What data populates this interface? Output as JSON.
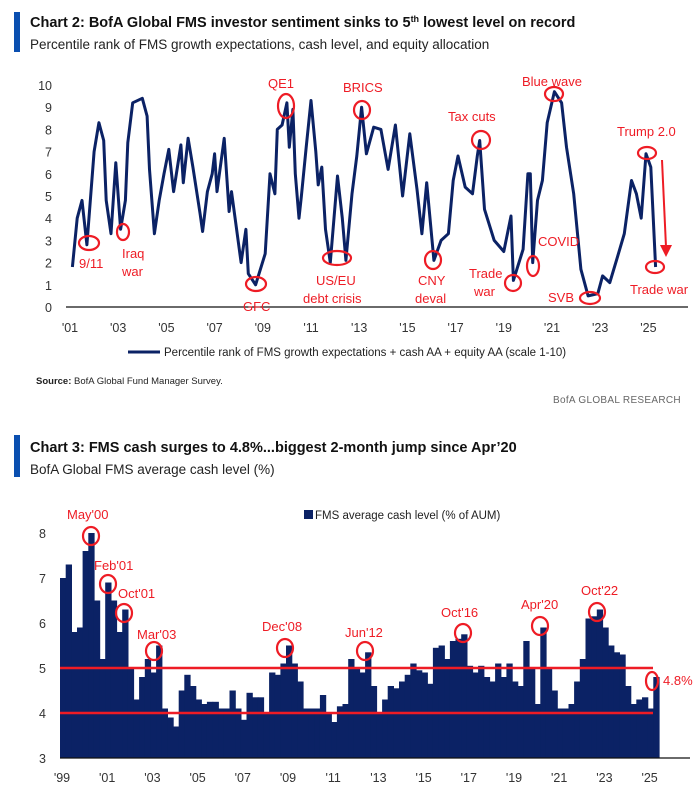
{
  "colors": {
    "accent_bar": "#0a4fb0",
    "series": "#0b2265",
    "annotation": "#ee1c25"
  },
  "chart2": {
    "title_prefix": "Chart 2: BofA Global FMS investor sentiment sinks to 5",
    "title_sup": "th",
    "title_suffix": " lowest level on record",
    "subtitle": "Percentile rank of FMS growth expectations, cash level, and equity allocation",
    "source_label": "Source:",
    "source_text": " BofA Global Fund Manager Survey.",
    "brand": "BofA GLOBAL RESEARCH"
  },
  "chart3": {
    "title": "Chart 3: FMS cash surges to 4.8%...biggest 2-month jump since Apr’20",
    "subtitle": "BofA Global FMS average cash level (%)"
  },
  "chart_data": [
    {
      "type": "line",
      "title": "Chart 2: BofA Global FMS investor sentiment sinks to 5th lowest level on record",
      "subtitle": "Percentile rank of FMS growth expectations, cash level, and equity allocation",
      "ylim": [
        0,
        10
      ],
      "yticks": [
        "0",
        "1",
        "2",
        "3",
        "4",
        "5",
        "6",
        "7",
        "8",
        "9",
        "10"
      ],
      "xlim": [
        2000.9,
        2027.5
      ],
      "xticks": [
        {
          "year": 2001,
          "label": "'01"
        },
        {
          "year": 2003,
          "label": "'03"
        },
        {
          "year": 2005,
          "label": "'05"
        },
        {
          "year": 2007,
          "label": "'07"
        },
        {
          "year": 2009,
          "label": "'09"
        },
        {
          "year": 2011,
          "label": "'11"
        },
        {
          "year": 2013,
          "label": "'13"
        },
        {
          "year": 2015,
          "label": "'15"
        },
        {
          "year": 2017,
          "label": "'17"
        },
        {
          "year": 2019,
          "label": "'19"
        },
        {
          "year": 2021,
          "label": "'21"
        },
        {
          "year": 2023,
          "label": "'23"
        },
        {
          "year": 2025,
          "label": "'25"
        }
      ],
      "legend": "Percentile rank of FMS growth expectations + cash AA + equity AA (scale 1-10)",
      "legend_position": "bottom",
      "grid": false,
      "series": [
        {
          "name": "Percentile rank of FMS growth expectations + cash AA + equity AA (scale 1-10)",
          "x": [
            2001.1,
            2001.3,
            2001.5,
            2001.7,
            2002.0,
            2002.2,
            2002.4,
            2002.5,
            2002.7,
            2002.9,
            2003.1,
            2003.3,
            2003.4,
            2003.6,
            2004.0,
            2004.2,
            2004.3,
            2004.5,
            2004.7,
            2004.9,
            2005.1,
            2005.3,
            2005.6,
            2005.7,
            2005.9,
            2006.1,
            2006.4,
            2006.5,
            2006.7,
            2006.9,
            2007.0,
            2007.1,
            2007.4,
            2007.6,
            2007.7,
            2008.1,
            2008.3,
            2008.4,
            2008.7,
            2009.1,
            2009.3,
            2009.5,
            2009.6,
            2009.8,
            2010.0,
            2010.1,
            2010.25,
            2010.35,
            2010.5,
            2010.6,
            2010.8,
            2011.0,
            2011.2,
            2011.3,
            2011.45,
            2011.6,
            2011.8,
            2012.1,
            2012.3,
            2012.45,
            2012.7,
            2012.9,
            2013.1,
            2013.3,
            2013.6,
            2013.9,
            2014.2,
            2014.5,
            2014.8,
            2015.1,
            2015.4,
            2015.6,
            2015.8,
            2016.1,
            2016.4,
            2016.7,
            2016.9,
            2017.1,
            2017.4,
            2017.7,
            2017.9,
            2018.0,
            2018.2,
            2018.6,
            2019.0,
            2019.3,
            2019.4,
            2019.8,
            2020.0,
            2020.1,
            2020.2,
            2020.4,
            2020.6,
            2020.8,
            2021.1,
            2021.4,
            2021.6,
            2021.9,
            2022.2,
            2022.5,
            2022.9,
            2023.1,
            2023.4,
            2023.7,
            2024.0,
            2024.3,
            2024.5,
            2024.7,
            2024.9,
            2025.1,
            2025.3
          ],
          "y": [
            1.8,
            4.0,
            4.8,
            2.8,
            7.0,
            8.3,
            7.5,
            4.8,
            3.3,
            6.5,
            3.5,
            4.8,
            7.4,
            9.2,
            9.4,
            8.6,
            6.2,
            3.3,
            4.8,
            6.0,
            7.1,
            5.2,
            7.3,
            5.6,
            7.6,
            6.3,
            4.2,
            3.4,
            5.2,
            6.0,
            6.9,
            5.2,
            7.6,
            4.3,
            5.2,
            2.0,
            3.5,
            1.5,
            1.0,
            2.4,
            6.0,
            5.1,
            8.0,
            8.2,
            9.2,
            7.2,
            8.9,
            6.0,
            4.0,
            5.0,
            7.2,
            9.3,
            7.0,
            5.5,
            6.3,
            3.5,
            2.0,
            5.9,
            4.0,
            2.1,
            5.1,
            6.8,
            9.0,
            6.9,
            8.1,
            8.0,
            6.2,
            8.2,
            5.0,
            7.8,
            5.3,
            3.3,
            5.6,
            2.1,
            3.0,
            3.3,
            5.7,
            6.8,
            5.4,
            5.1,
            6.8,
            7.5,
            4.4,
            3.0,
            2.5,
            4.1,
            1.2,
            2.6,
            6.0,
            6.0,
            2.0,
            4.8,
            5.7,
            8.3,
            9.7,
            9.2,
            7.2,
            5.1,
            1.7,
            0.5,
            0.6,
            1.4,
            1.1,
            2.2,
            3.3,
            5.7,
            5.1,
            4.0,
            6.9,
            6.3,
            1.8
          ]
        }
      ],
      "annotations": [
        "9/11",
        "Iraq",
        "war",
        "QE1",
        "GFC",
        "BRICS",
        "US/EU",
        "debt crisis",
        "Tax cuts",
        "CNY",
        "deval",
        "Trade",
        "war",
        "COVID",
        "Blue wave",
        "SVB",
        "Trump 2.0",
        "Trade war"
      ]
    },
    {
      "type": "bar",
      "title": "Chart 3: FMS cash surges to 4.8%...biggest 2-month jump since Apr’20",
      "subtitle": "BofA Global FMS average cash level (%)",
      "ylim": [
        3,
        8.4
      ],
      "yticks": [
        "3",
        "4",
        "5",
        "6",
        "7",
        "8"
      ],
      "xlim": [
        1999,
        2027.6
      ],
      "xticks": [
        {
          "year": 1999,
          "label": "'99"
        },
        {
          "year": 2001,
          "label": "'01"
        },
        {
          "year": 2003,
          "label": "'03"
        },
        {
          "year": 2005,
          "label": "'05"
        },
        {
          "year": 2007,
          "label": "'07"
        },
        {
          "year": 2009,
          "label": "'09"
        },
        {
          "year": 2011,
          "label": "'11"
        },
        {
          "year": 2013,
          "label": "'13"
        },
        {
          "year": 2015,
          "label": "'15"
        },
        {
          "year": 2017,
          "label": "'17"
        },
        {
          "year": 2019,
          "label": "'19"
        },
        {
          "year": 2021,
          "label": "'21"
        },
        {
          "year": 2023,
          "label": "'23"
        },
        {
          "year": 2025,
          "label": "'25"
        }
      ],
      "legend": "FMS average cash level (% of AUM)",
      "legend_position": "top",
      "grid": false,
      "reference_lines": [
        5,
        4
      ],
      "series": [
        {
          "name": "FMS average cash level (% of AUM)",
          "start_year": 1999,
          "step_years": 0.25,
          "values": [
            7.0,
            7.3,
            5.8,
            5.9,
            7.6,
            8.0,
            6.5,
            5.2,
            6.9,
            6.5,
            5.8,
            6.3,
            5.0,
            4.3,
            4.8,
            5.2,
            4.9,
            5.5,
            4.1,
            3.9,
            3.7,
            4.5,
            4.85,
            4.6,
            4.3,
            4.2,
            4.25,
            4.25,
            4.1,
            4.1,
            4.5,
            4.1,
            3.85,
            4.45,
            4.35,
            4.35,
            4.0,
            4.9,
            4.85,
            5.1,
            5.5,
            5.1,
            4.7,
            4.1,
            4.1,
            4.1,
            4.4,
            4.0,
            3.8,
            4.15,
            4.2,
            5.2,
            5.0,
            4.9,
            5.35,
            4.6,
            4.0,
            4.3,
            4.6,
            4.55,
            4.7,
            4.85,
            5.1,
            4.95,
            4.9,
            4.65,
            5.45,
            5.5,
            5.2,
            5.6,
            5.65,
            5.75,
            5.05,
            4.9,
            5.05,
            4.8,
            4.7,
            5.1,
            4.8,
            5.1,
            4.7,
            4.6,
            5.6,
            5.0,
            4.2,
            5.9,
            5.0,
            4.5,
            4.1,
            4.1,
            4.2,
            4.7,
            5.2,
            6.1,
            6.15,
            6.3,
            5.9,
            5.5,
            5.35,
            5.3,
            4.6,
            4.2,
            4.3,
            4.35,
            4.1,
            4.8
          ]
        }
      ],
      "annotations": [
        "May'00",
        "Feb'01",
        "Oct'01",
        "Mar'03",
        "Dec'08",
        "Jun'12",
        "Oct'16",
        "Apr'20",
        "Oct'22",
        "4.8%"
      ]
    }
  ]
}
